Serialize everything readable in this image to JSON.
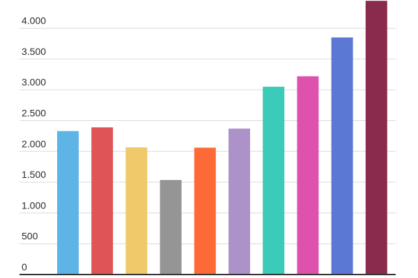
{
  "chart_data": {
    "type": "bar",
    "title": "",
    "xlabel": "",
    "ylabel": "",
    "ylim": [
      0,
      4500
    ],
    "y_ticks": [
      0,
      500,
      1000,
      1500,
      2000,
      2500,
      3000,
      3500,
      4000
    ],
    "y_tick_labels": [
      "0",
      "500",
      "1.000",
      "1.500",
      "2.000",
      "2.500",
      "3.000",
      "3.500",
      "4.000"
    ],
    "grid": true,
    "legend": "none",
    "values": [
      2330,
      2390,
      2065,
      1535,
      2060,
      2370,
      3050,
      3220,
      3850,
      4445
    ],
    "colors": [
      "#5eb4e6",
      "#df5454",
      "#efc96a",
      "#959595",
      "#fd6a38",
      "#ad92c9",
      "#3bcbb8",
      "#de52ae",
      "#5a78d4",
      "#8a2b4d"
    ]
  }
}
